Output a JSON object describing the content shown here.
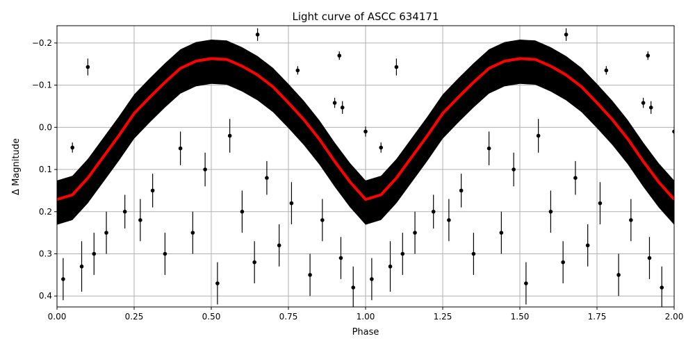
{
  "chart_data": {
    "type": "scatter",
    "title": "Light curve of ASCC 634171",
    "xlabel": "Phase",
    "ylabel": "Δ Magnitude",
    "xlim": [
      0,
      2
    ],
    "ylim": [
      0.426,
      -0.241
    ],
    "y_inverted": true,
    "grid": true,
    "x_ticks": [
      "0.00",
      "0.25",
      "0.50",
      "0.75",
      "1.00",
      "1.25",
      "1.50",
      "1.75",
      "2.00"
    ],
    "y_ticks": [
      "−0.2",
      "−0.1",
      "0.0",
      "0.1",
      "0.2",
      "0.3",
      "0.4"
    ],
    "colors": {
      "points": "#000000",
      "model": "#ff0000",
      "grid": "#b0b0b0"
    },
    "model_curve": {
      "phase": [
        0,
        0.05,
        0.1,
        0.15,
        0.2,
        0.25,
        0.3,
        0.35,
        0.4,
        0.45,
        0.5,
        0.55,
        0.6,
        0.65,
        0.7,
        0.75,
        0.8,
        0.85,
        0.9,
        0.95,
        1.0
      ],
      "magnitude": [
        0.171,
        0.16,
        0.12,
        0.07,
        0.02,
        -0.033,
        -0.071,
        -0.107,
        -0.14,
        -0.157,
        -0.163,
        -0.161,
        -0.145,
        -0.124,
        -0.096,
        -0.058,
        -0.018,
        0.028,
        0.081,
        0.13,
        0.171
      ],
      "period_in_phase": 1
    },
    "dense_band_halfwidth": [
      0.045,
      0.06
    ],
    "points": [
      {
        "x": 0.1,
        "y": -0.143,
        "err": 0.02
      },
      {
        "x": 0.05,
        "y": 0.048,
        "err": 0.012
      },
      {
        "x": 0.65,
        "y": -0.22,
        "err": 0.015
      },
      {
        "x": 0.915,
        "y": -0.17,
        "err": 0.01
      },
      {
        "x": 0.9,
        "y": -0.058,
        "err": 0.012
      },
      {
        "x": 0.925,
        "y": -0.047,
        "err": 0.015
      },
      {
        "x": 1.0,
        "y": 0.01,
        "err": 0.012
      },
      {
        "x": 1.1,
        "y": -0.143,
        "err": 0.02
      },
      {
        "x": 1.05,
        "y": 0.048,
        "err": 0.012
      },
      {
        "x": 1.65,
        "y": -0.22,
        "err": 0.015
      },
      {
        "x": 1.915,
        "y": -0.17,
        "err": 0.01
      },
      {
        "x": 1.9,
        "y": -0.058,
        "err": 0.012
      },
      {
        "x": 1.925,
        "y": -0.047,
        "err": 0.015
      },
      {
        "x": 2.0,
        "y": 0.01,
        "err": 0.012
      },
      {
        "x": 0.78,
        "y": -0.135,
        "err": 0.01
      },
      {
        "x": 1.78,
        "y": -0.135,
        "err": 0.01
      },
      {
        "x": 0.02,
        "y": 0.36,
        "err": 0.05
      },
      {
        "x": 0.08,
        "y": 0.33,
        "err": 0.06
      },
      {
        "x": 0.12,
        "y": 0.3,
        "err": 0.05
      },
      {
        "x": 0.16,
        "y": 0.25,
        "err": 0.05
      },
      {
        "x": 0.22,
        "y": 0.2,
        "err": 0.04
      },
      {
        "x": 0.27,
        "y": 0.22,
        "err": 0.05
      },
      {
        "x": 0.31,
        "y": 0.15,
        "err": 0.04
      },
      {
        "x": 0.35,
        "y": 0.3,
        "err": 0.05
      },
      {
        "x": 0.4,
        "y": 0.05,
        "err": 0.04
      },
      {
        "x": 0.44,
        "y": 0.25,
        "err": 0.05
      },
      {
        "x": 0.48,
        "y": 0.1,
        "err": 0.04
      },
      {
        "x": 0.52,
        "y": 0.37,
        "err": 0.05
      },
      {
        "x": 0.56,
        "y": 0.02,
        "err": 0.04
      },
      {
        "x": 0.6,
        "y": 0.2,
        "err": 0.05
      },
      {
        "x": 0.64,
        "y": 0.32,
        "err": 0.05
      },
      {
        "x": 0.68,
        "y": 0.12,
        "err": 0.04
      },
      {
        "x": 0.72,
        "y": 0.28,
        "err": 0.05
      },
      {
        "x": 0.76,
        "y": 0.18,
        "err": 0.05
      },
      {
        "x": 0.82,
        "y": 0.35,
        "err": 0.05
      },
      {
        "x": 0.86,
        "y": 0.22,
        "err": 0.05
      },
      {
        "x": 0.92,
        "y": 0.31,
        "err": 0.05
      },
      {
        "x": 0.96,
        "y": 0.38,
        "err": 0.05
      },
      {
        "x": 1.02,
        "y": 0.36,
        "err": 0.05
      },
      {
        "x": 1.08,
        "y": 0.33,
        "err": 0.06
      },
      {
        "x": 1.12,
        "y": 0.3,
        "err": 0.05
      },
      {
        "x": 1.16,
        "y": 0.25,
        "err": 0.05
      },
      {
        "x": 1.22,
        "y": 0.2,
        "err": 0.04
      },
      {
        "x": 1.27,
        "y": 0.22,
        "err": 0.05
      },
      {
        "x": 1.31,
        "y": 0.15,
        "err": 0.04
      },
      {
        "x": 1.35,
        "y": 0.3,
        "err": 0.05
      },
      {
        "x": 1.4,
        "y": 0.05,
        "err": 0.04
      },
      {
        "x": 1.44,
        "y": 0.25,
        "err": 0.05
      },
      {
        "x": 1.48,
        "y": 0.1,
        "err": 0.04
      },
      {
        "x": 1.52,
        "y": 0.37,
        "err": 0.05
      },
      {
        "x": 1.56,
        "y": 0.02,
        "err": 0.04
      },
      {
        "x": 1.6,
        "y": 0.2,
        "err": 0.05
      },
      {
        "x": 1.64,
        "y": 0.32,
        "err": 0.05
      },
      {
        "x": 1.68,
        "y": 0.12,
        "err": 0.04
      },
      {
        "x": 1.72,
        "y": 0.28,
        "err": 0.05
      },
      {
        "x": 1.76,
        "y": 0.18,
        "err": 0.05
      },
      {
        "x": 1.82,
        "y": 0.35,
        "err": 0.05
      },
      {
        "x": 1.86,
        "y": 0.22,
        "err": 0.05
      },
      {
        "x": 1.92,
        "y": 0.31,
        "err": 0.05
      },
      {
        "x": 1.96,
        "y": 0.38,
        "err": 0.05
      }
    ]
  }
}
